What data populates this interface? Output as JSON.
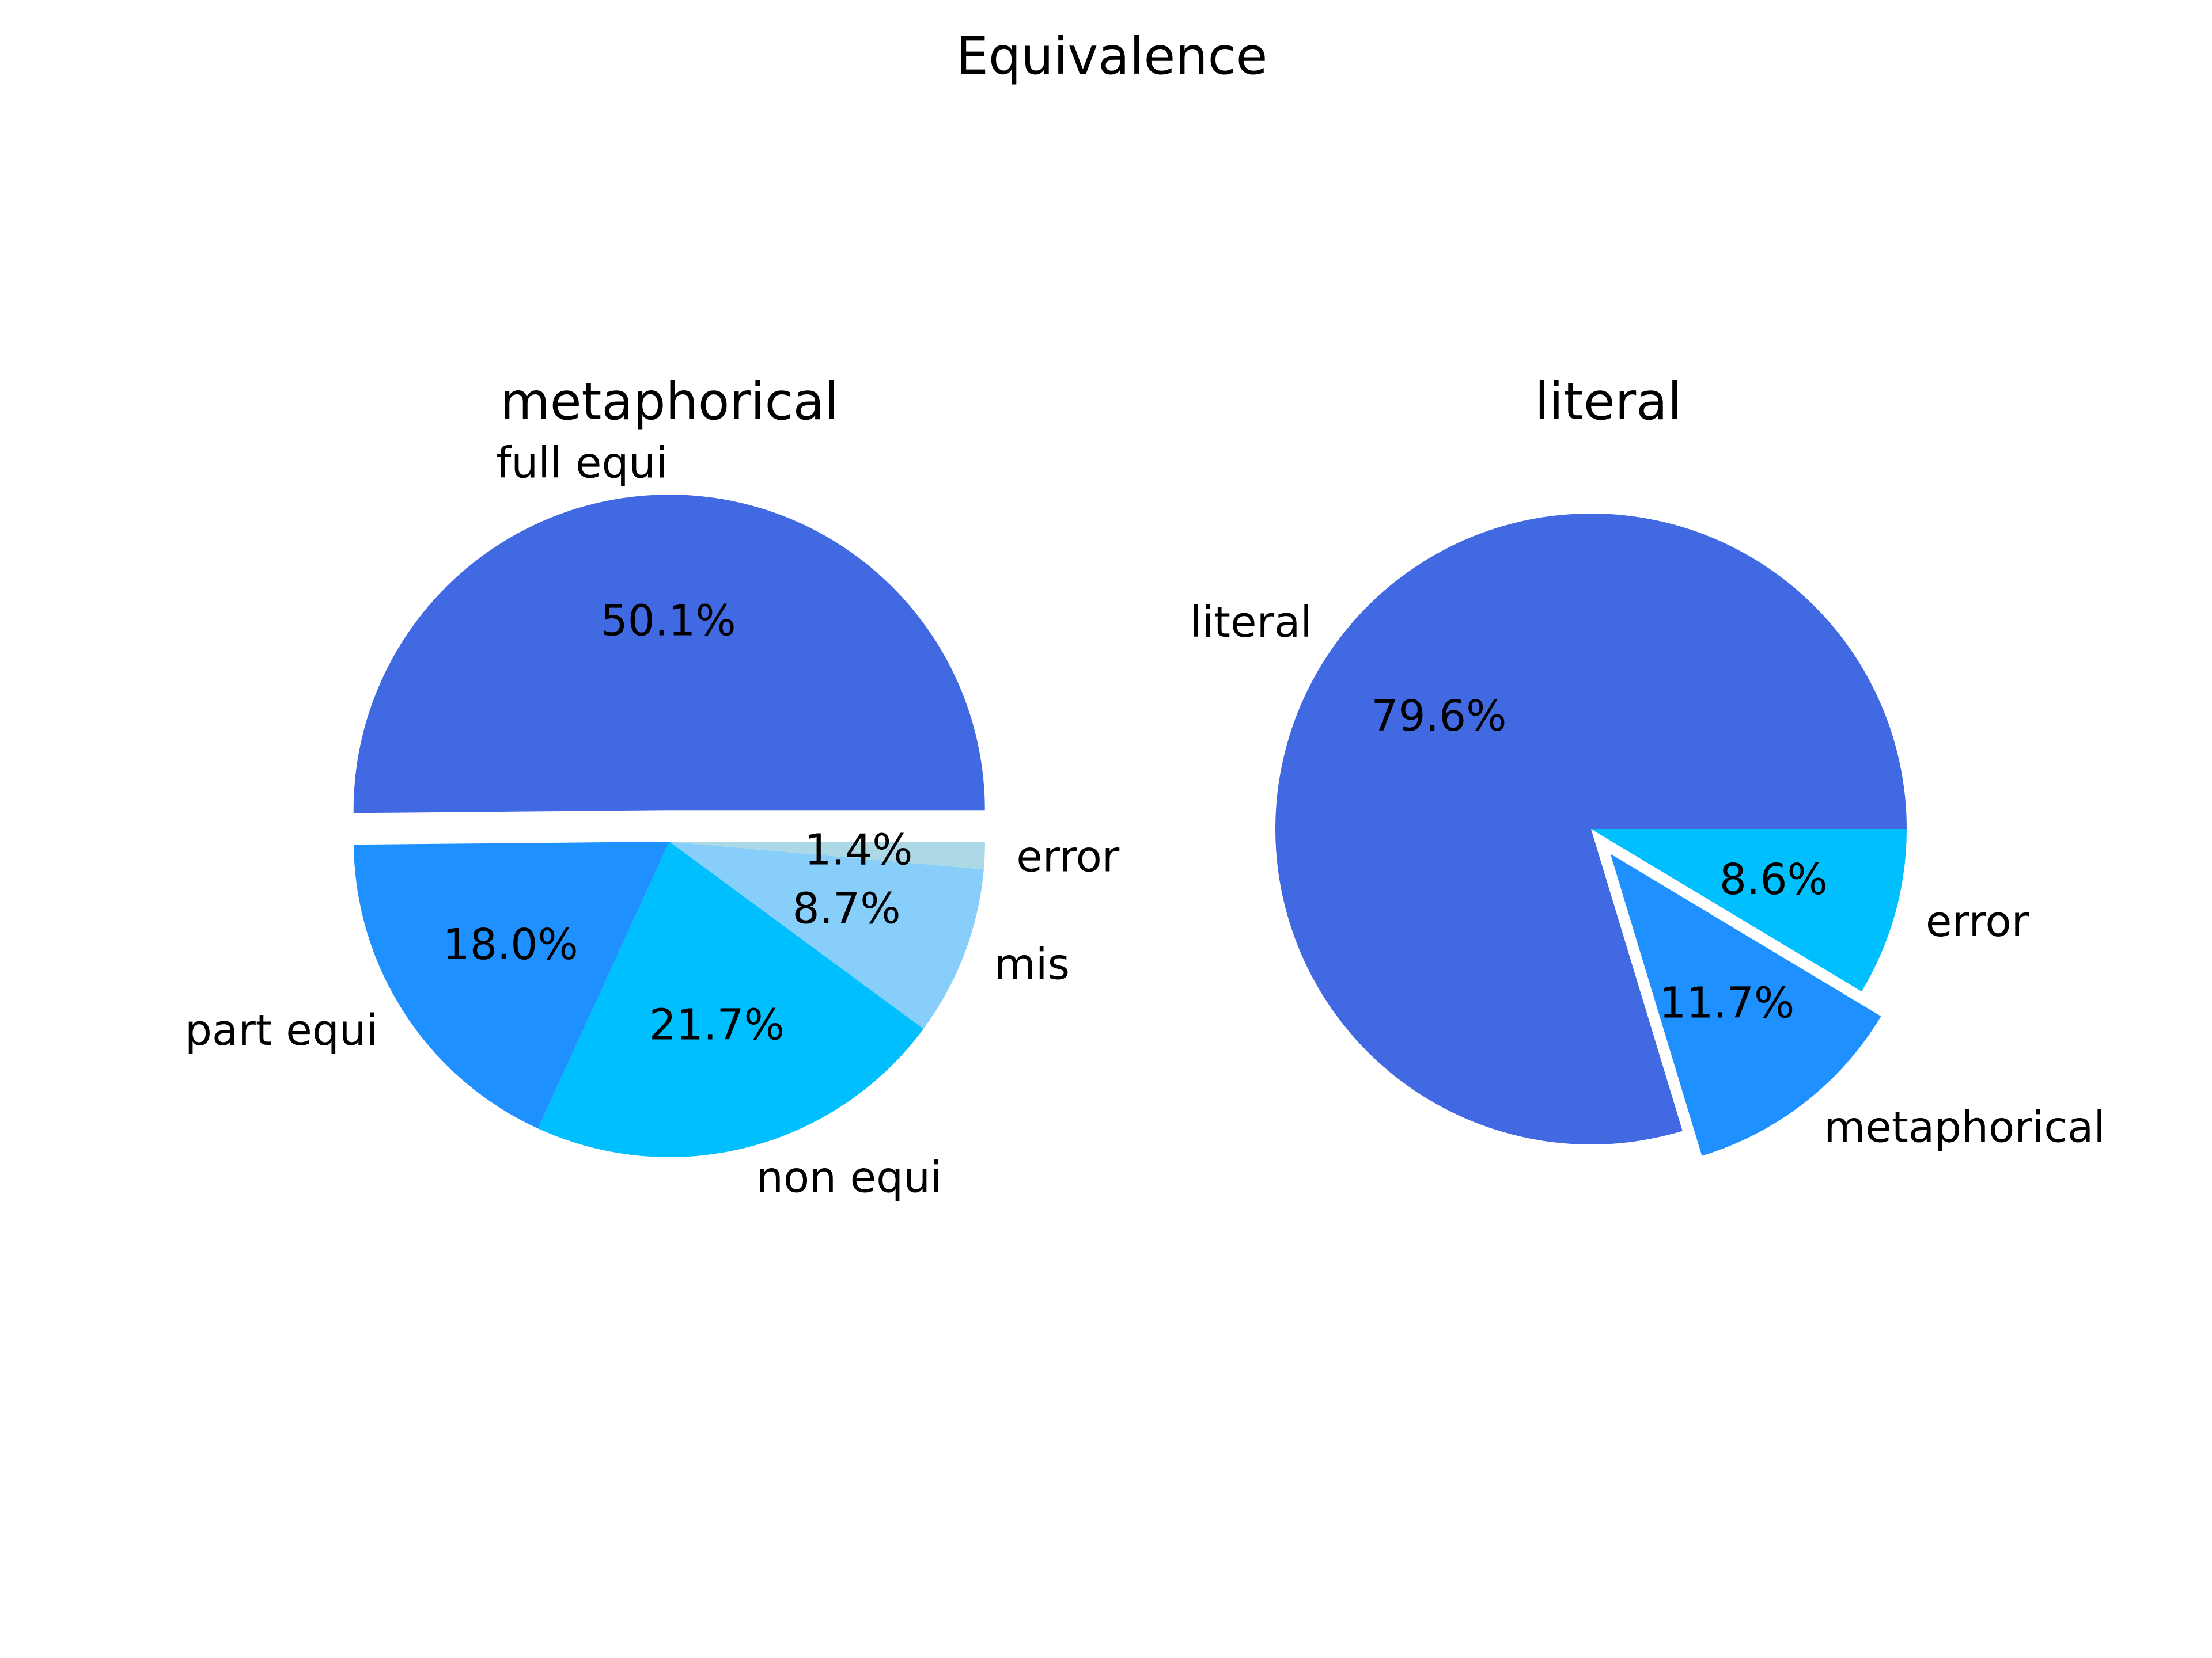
{
  "figure_title": "Equivalence",
  "chart_data": [
    {
      "type": "pie",
      "title": "metaphorical",
      "slices": [
        {
          "label": "full equi",
          "value": 50.1,
          "pct_label": "50.1%",
          "color": "#4169E1",
          "exploded": true
        },
        {
          "label": "part equi",
          "value": 18.0,
          "pct_label": "18.0%",
          "color": "#1E90FF",
          "exploded": false
        },
        {
          "label": "non equi",
          "value": 21.7,
          "pct_label": "21.7%",
          "color": "#00BFFF",
          "exploded": false
        },
        {
          "label": "mis",
          "value": 8.7,
          "pct_label": "8.7%",
          "color": "#87CEFA",
          "exploded": false
        },
        {
          "label": "error",
          "value": 1.4,
          "pct_label": "1.4%",
          "color": "#ADD8E6",
          "exploded": false
        }
      ]
    },
    {
      "type": "pie",
      "title": "literal",
      "slices": [
        {
          "label": "literal",
          "value": 79.6,
          "pct_label": "79.6%",
          "color": "#4169E1",
          "exploded": false
        },
        {
          "label": "metaphorical",
          "value": 11.7,
          "pct_label": "11.7%",
          "color": "#1E90FF",
          "exploded": true
        },
        {
          "label": "error",
          "value": 8.6,
          "pct_label": "8.6%",
          "color": "#00BFFF",
          "exploded": false
        }
      ]
    }
  ]
}
